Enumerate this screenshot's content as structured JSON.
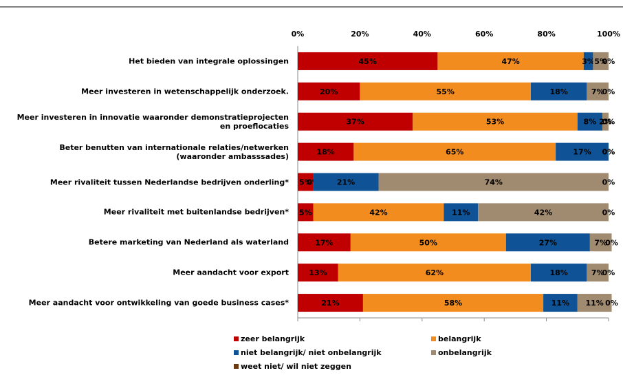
{
  "chart_data": {
    "type": "stacked-bar-horizontal",
    "categories": [
      "Het bieden van integrale oplossingen",
      "Meer investeren in wetenschappelijk onderzoek.",
      "Meer investeren in innovatie waaronder demonstratieprojecten\nen proeflocaties",
      "Beter benutten van internationale relaties/netwerken\n(waaronder ambasssades)",
      "Meer rivaliteit tussen Nederlandse bedrijven onderling*",
      "Meer rivaliteit met buitenlandse bedrijven*",
      "Betere marketing van Nederland als waterland",
      "Meer aandacht voor export",
      "Meer aandacht voor ontwikkeling van goede business cases*"
    ],
    "series": [
      {
        "name": "zeer belangrijk",
        "color": "#c00000",
        "values": [
          45,
          20,
          37,
          18,
          5,
          5,
          17,
          13,
          21
        ],
        "value_labels": [
          "45%",
          "20%",
          "37%",
          "18%",
          "5%",
          "5%",
          "17%",
          "13%",
          "21%"
        ]
      },
      {
        "name": "belangrijk",
        "color": "#f28c1e",
        "values": [
          47,
          55,
          53,
          65,
          0,
          42,
          50,
          62,
          58
        ],
        "value_labels": [
          "47%",
          "55%",
          "53%",
          "65%",
          "0%",
          "42%",
          "50%",
          "62%",
          "58%"
        ]
      },
      {
        "name": "niet belangrijk/ niet onbelangrijk",
        "color": "#0f5396",
        "values": [
          3,
          18,
          8,
          17,
          21,
          11,
          27,
          18,
          11
        ],
        "value_labels": [
          "3%",
          "18%",
          "8%",
          "17%",
          "21%",
          "11%",
          "27%",
          "18%",
          "11%"
        ]
      },
      {
        "name": "onbelangrijk",
        "color": "#a08a70",
        "values": [
          5,
          7,
          2,
          0,
          74,
          42,
          7,
          7,
          11
        ],
        "value_labels": [
          "5%",
          "7%",
          "2%",
          "0%",
          "74%",
          "42%",
          "7%",
          "7%",
          "11%"
        ]
      },
      {
        "name": "weet niet/ wil niet zeggen",
        "color": "#6b3a10",
        "values": [
          0,
          0,
          0,
          0,
          0,
          0,
          0,
          0,
          0
        ],
        "value_labels": [
          "0%",
          "0%",
          "0%",
          "0%",
          "0%",
          "0%",
          "0%",
          "0%",
          "0%"
        ]
      }
    ],
    "xlim": [
      0,
      100
    ],
    "xticks": [
      {
        "value": 0,
        "label": "0%"
      },
      {
        "value": 20,
        "label": "20%"
      },
      {
        "value": 40,
        "label": "40%"
      },
      {
        "value": 60,
        "label": "60%"
      },
      {
        "value": 80,
        "label": "80%"
      },
      {
        "value": 100,
        "label": "100%"
      }
    ]
  }
}
